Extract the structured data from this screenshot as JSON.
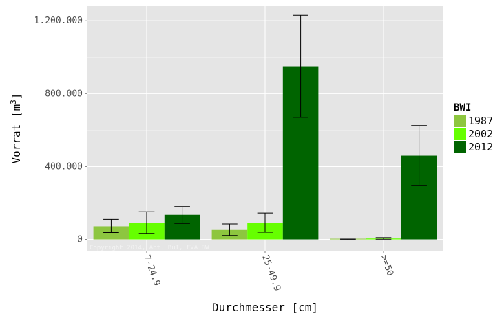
{
  "chart_data": {
    "type": "bar",
    "xlabel": "Durchmesser [cm]",
    "ylabel_main": "Vorrat [m",
    "ylabel_sup": "3",
    "ylabel_end": "]",
    "categories": [
      "7-24.9",
      "25-49.9",
      ">=50"
    ],
    "yticks": [
      0,
      400000,
      800000,
      1200000
    ],
    "ytick_labels": [
      "0",
      "400.000",
      "800.000",
      "1.200.000"
    ],
    "ylim": [
      -62000,
      1280000
    ],
    "grid": true,
    "legend_title": "BWI",
    "legend_position": "right",
    "series": [
      {
        "name": "1987",
        "color": "#8dc63f",
        "values": [
          72000,
          52000,
          0
        ],
        "error_low": [
          38000,
          22000,
          -2000
        ],
        "error_high": [
          110000,
          85000,
          2000
        ]
      },
      {
        "name": "2002",
        "color": "#66ff00",
        "values": [
          92000,
          92000,
          5000
        ],
        "error_low": [
          33000,
          40000,
          1000
        ],
        "error_high": [
          152000,
          145000,
          10000
        ]
      },
      {
        "name": "2012",
        "color": "#006400",
        "values": [
          135000,
          950000,
          460000
        ],
        "error_low": [
          88000,
          670000,
          295000
        ],
        "error_high": [
          180000,
          1230000,
          625000
        ]
      }
    ],
    "watermark": "Copyright 2014, Abt. BuI, FVA BW"
  }
}
